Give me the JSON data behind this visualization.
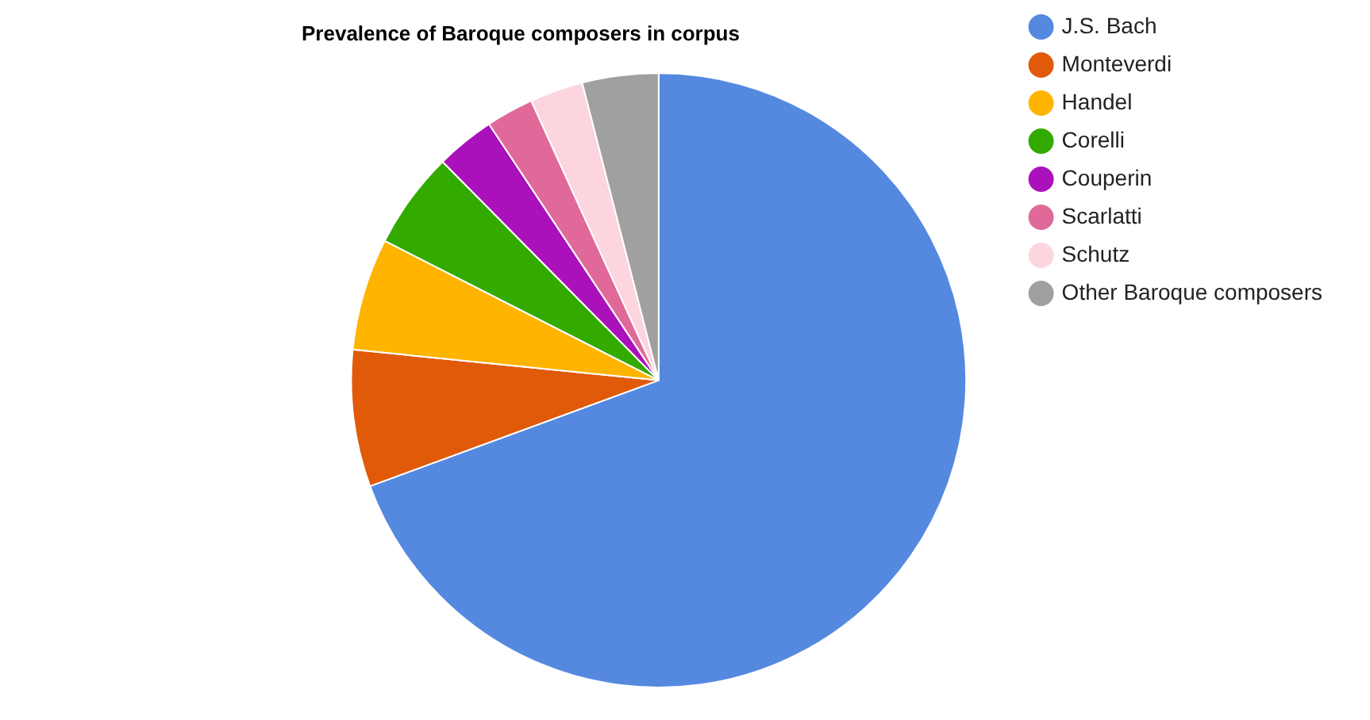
{
  "chart_data": {
    "type": "pie",
    "title": "Prevalence of Baroque composers in corpus",
    "categories": [
      "J.S. Bach",
      "Monteverdi",
      "Handel",
      "Corelli",
      "Couperin",
      "Scarlatti",
      "Schutz",
      "Other Baroque composers"
    ],
    "values": [
      69.4,
      7.2,
      5.9,
      5.1,
      3.1,
      2.5,
      2.8,
      4.0
    ],
    "colors": [
      "#5589e0",
      "#e05a0a",
      "#ffb400",
      "#33aa00",
      "#aa11bb",
      "#e0699a",
      "#fcd5de",
      "#a0a0a0"
    ],
    "legend": "right"
  }
}
